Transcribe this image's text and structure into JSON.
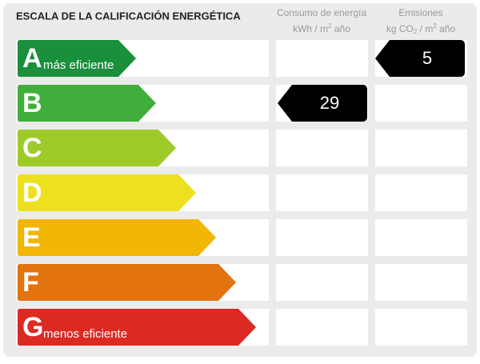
{
  "title": "ESCALA DE LA CALIFICACIÓN ENERGÉTICA",
  "columns": [
    {
      "label": "Consumo de energía",
      "unit": [
        "kWh / m",
        "2",
        " año"
      ]
    },
    {
      "label": "Emisiones",
      "unit": [
        "kg CO",
        "2",
        " / m",
        "2",
        " año"
      ]
    }
  ],
  "rows": [
    {
      "letter": "A",
      "label": "más eficiente",
      "color": "#1a8f3c",
      "emissions": "5"
    },
    {
      "letter": "B",
      "color": "#3fae3a",
      "consumption": "29"
    },
    {
      "letter": "C",
      "color": "#9fcb2a"
    },
    {
      "letter": "D",
      "color": "#ede01e"
    },
    {
      "letter": "E",
      "color": "#f2b705"
    },
    {
      "letter": "F",
      "color": "#e2730f"
    },
    {
      "letter": "G",
      "label": "menos eficiente",
      "color": "#dc2a23"
    }
  ]
}
